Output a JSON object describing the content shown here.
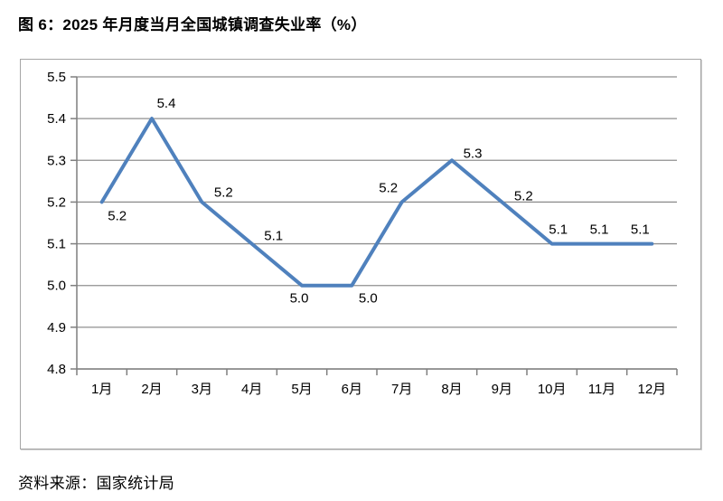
{
  "title": "图 6：2025 年月度当月全国城镇调查失业率（%）",
  "source_note": "资料来源：国家统计局",
  "colors": {
    "line": "#4F81BD",
    "gridline": "#8f8f8f",
    "axis": "#7f7f7f",
    "text": "#000000",
    "frame_border": "#a6a6a6"
  },
  "chart_data": {
    "type": "line",
    "title": "",
    "xlabel": "",
    "ylabel": "",
    "categories": [
      "1月",
      "2月",
      "3月",
      "4月",
      "5月",
      "6月",
      "7月",
      "8月",
      "9月",
      "10月",
      "11月",
      "12月"
    ],
    "values": [
      5.2,
      5.4,
      5.2,
      5.1,
      5.0,
      5.0,
      5.2,
      5.3,
      5.2,
      5.1,
      5.1,
      5.1
    ],
    "data_labels": [
      "5.2",
      "5.4",
      "5.2",
      "5.1",
      "5.0",
      "5.0",
      "5.2",
      "5.3",
      "5.2",
      "5.1",
      "5.1",
      "5.1"
    ],
    "ylim": [
      4.8,
      5.5
    ],
    "ytick_step": 0.1,
    "yticks": [
      "5.5",
      "5.4",
      "5.3",
      "5.2",
      "5.1",
      "5.0",
      "4.9",
      "4.8"
    ],
    "grid": true,
    "legend_position": "none",
    "line_color": "#4F81BD"
  }
}
